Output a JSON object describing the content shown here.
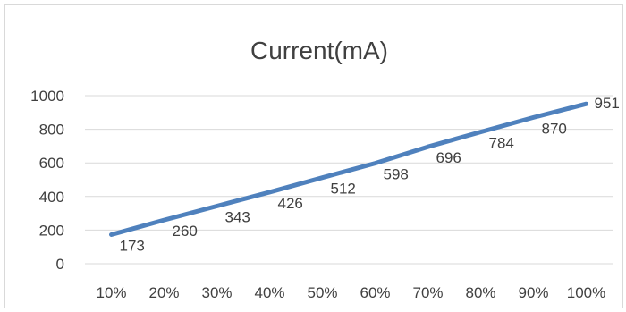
{
  "chart_data": {
    "type": "line",
    "title": "Current(mA)",
    "categories": [
      "10%",
      "20%",
      "30%",
      "40%",
      "50%",
      "60%",
      "70%",
      "80%",
      "90%",
      "100%"
    ],
    "series": [
      {
        "values": [
          173,
          260,
          343,
          426,
          512,
          598,
          696,
          784,
          870,
          951
        ],
        "color": "#4f81bd"
      }
    ],
    "ylim": [
      0,
      1000
    ],
    "yticks": [
      "0",
      "200",
      "400",
      "600",
      "800",
      "1000"
    ],
    "data_labels": [
      "173",
      "260",
      "343",
      "426",
      "512",
      "598",
      "696",
      "784",
      "870",
      "951"
    ],
    "grid": true,
    "legend": "none"
  }
}
